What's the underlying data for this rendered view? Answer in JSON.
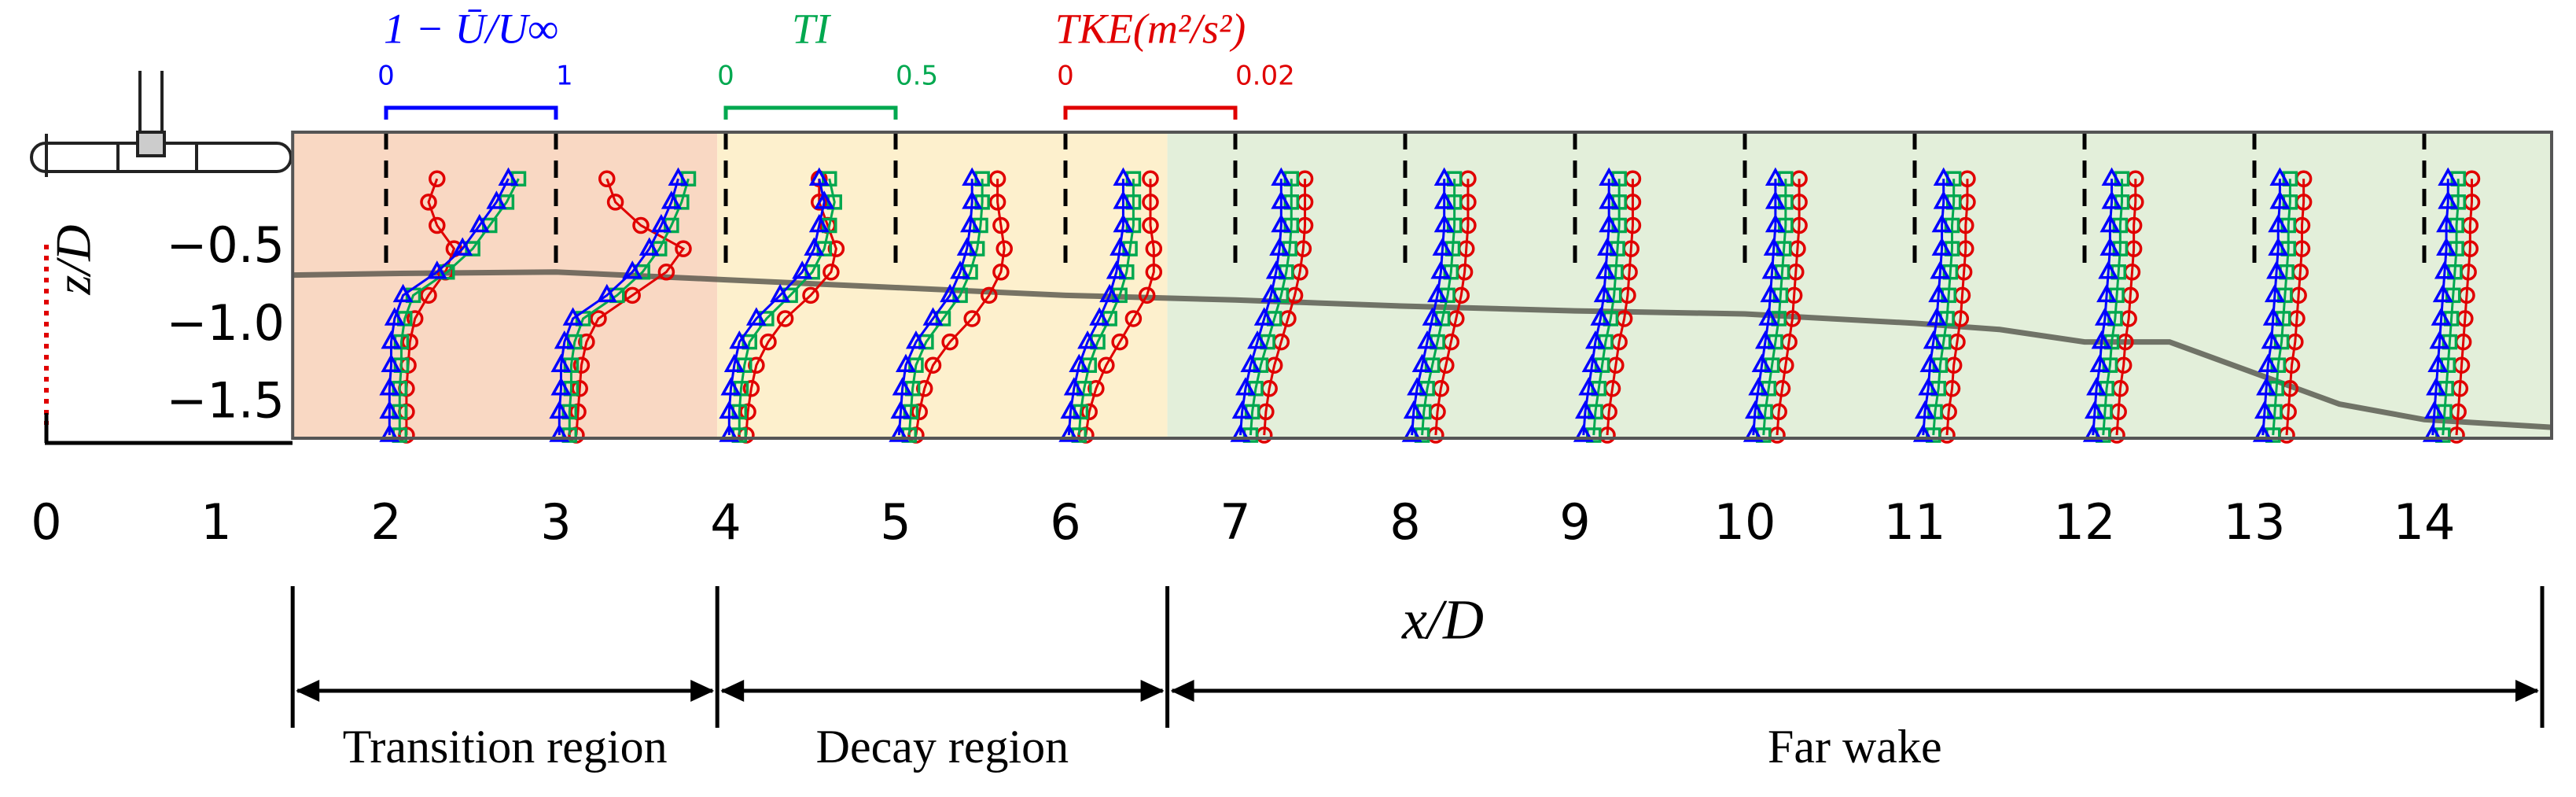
{
  "chart_data": {
    "type": "profile",
    "xlabel": "x/D",
    "ylabel": "z/D",
    "xlim": [
      0,
      14.75
    ],
    "xticks": [
      0,
      1,
      2,
      3,
      4,
      5,
      6,
      7,
      8,
      9,
      10,
      11,
      12,
      13,
      14
    ],
    "ylim": [
      -1.72,
      0.25
    ],
    "yticks": [
      {
        "value": -0.5,
        "label": "−0.5"
      },
      {
        "value": -1.0,
        "label": "−1.0"
      },
      {
        "value": -1.5,
        "label": "−1.5"
      }
    ],
    "z": [
      -1.7,
      -1.55,
      -1.4,
      -1.25,
      -1.1,
      -0.95,
      -0.8,
      -0.65,
      -0.5,
      -0.35,
      -0.2,
      -0.05
    ],
    "stations": [
      2,
      3,
      4,
      5,
      6,
      7,
      8,
      9,
      10,
      11,
      12,
      13,
      14
    ],
    "regions": [
      {
        "label": "Transition region",
        "range": [
          1.45,
          3.95
        ],
        "color": "#f9d8c3"
      },
      {
        "label": "Decay region",
        "range": [
          3.95,
          6.6
        ],
        "color": "#fdf0cd"
      },
      {
        "label": "Far wake",
        "range": [
          6.6,
          14.75
        ],
        "color": "#e3efda"
      }
    ],
    "wake_boundary": {
      "color": "#4a4a40",
      "x": [
        1.45,
        2,
        3,
        4,
        5,
        6,
        7,
        8,
        9,
        10,
        11,
        11.5,
        12,
        12.5,
        13,
        13.5,
        14,
        14.75
      ],
      "z": [
        -0.67,
        -0.66,
        -0.65,
        -0.7,
        -0.75,
        -0.8,
        -0.83,
        -0.87,
        -0.9,
        -0.92,
        -0.98,
        -1.02,
        -1.1,
        -1.1,
        -1.3,
        -1.5,
        -1.6,
        -1.65
      ]
    },
    "series": [
      {
        "name": "1 − Ū/U∞",
        "color": "#0000ff",
        "marker": "triangle",
        "scale": [
          0,
          1
        ],
        "scale_ticks": [
          0,
          1
        ],
        "values": [
          [
            0.02,
            0.02,
            0.02,
            0.03,
            0.03,
            0.05,
            0.1,
            0.3,
            0.45,
            0.55,
            0.65,
            0.72
          ],
          [
            0.02,
            0.02,
            0.03,
            0.03,
            0.05,
            0.1,
            0.3,
            0.45,
            0.55,
            0.62,
            0.68,
            0.72
          ],
          [
            0.02,
            0.02,
            0.03,
            0.05,
            0.08,
            0.18,
            0.32,
            0.45,
            0.52,
            0.55,
            0.58,
            0.55
          ],
          [
            0.02,
            0.03,
            0.04,
            0.06,
            0.12,
            0.22,
            0.32,
            0.38,
            0.42,
            0.44,
            0.45,
            0.45
          ],
          [
            0.02,
            0.03,
            0.05,
            0.08,
            0.13,
            0.2,
            0.26,
            0.3,
            0.32,
            0.34,
            0.34,
            0.34
          ],
          [
            0.03,
            0.04,
            0.06,
            0.09,
            0.13,
            0.17,
            0.21,
            0.24,
            0.26,
            0.27,
            0.27,
            0.27
          ],
          [
            0.04,
            0.05,
            0.07,
            0.1,
            0.13,
            0.16,
            0.19,
            0.21,
            0.22,
            0.23,
            0.23,
            0.23
          ],
          [
            0.05,
            0.06,
            0.08,
            0.1,
            0.12,
            0.15,
            0.17,
            0.18,
            0.19,
            0.2,
            0.2,
            0.2
          ],
          [
            0.05,
            0.06,
            0.08,
            0.1,
            0.12,
            0.14,
            0.15,
            0.16,
            0.17,
            0.18,
            0.18,
            0.18
          ],
          [
            0.05,
            0.06,
            0.08,
            0.09,
            0.11,
            0.13,
            0.14,
            0.15,
            0.16,
            0.16,
            0.17,
            0.17
          ],
          [
            0.05,
            0.06,
            0.07,
            0.09,
            0.1,
            0.12,
            0.13,
            0.14,
            0.15,
            0.15,
            0.16,
            0.16
          ],
          [
            0.05,
            0.06,
            0.07,
            0.08,
            0.1,
            0.11,
            0.12,
            0.13,
            0.14,
            0.14,
            0.15,
            0.15
          ],
          [
            0.05,
            0.06,
            0.07,
            0.08,
            0.09,
            0.1,
            0.11,
            0.12,
            0.13,
            0.13,
            0.14,
            0.14
          ]
        ]
      },
      {
        "name": "TI",
        "color": "#00a84f",
        "marker": "square",
        "scale": [
          0,
          0.5
        ],
        "scale_ticks": [
          0,
          0.5
        ],
        "values": [
          [
            0.04,
            0.04,
            0.04,
            0.045,
            0.045,
            0.055,
            0.08,
            0.18,
            0.255,
            0.305,
            0.355,
            0.39
          ],
          [
            0.04,
            0.04,
            0.045,
            0.045,
            0.055,
            0.08,
            0.18,
            0.255,
            0.305,
            0.34,
            0.37,
            0.39
          ],
          [
            0.04,
            0.04,
            0.045,
            0.055,
            0.07,
            0.12,
            0.19,
            0.255,
            0.29,
            0.305,
            0.32,
            0.305
          ],
          [
            0.04,
            0.045,
            0.05,
            0.06,
            0.09,
            0.14,
            0.19,
            0.22,
            0.24,
            0.25,
            0.255,
            0.255
          ],
          [
            0.04,
            0.045,
            0.055,
            0.07,
            0.095,
            0.13,
            0.16,
            0.18,
            0.19,
            0.2,
            0.2,
            0.2
          ],
          [
            0.045,
            0.05,
            0.06,
            0.075,
            0.095,
            0.115,
            0.135,
            0.15,
            0.16,
            0.165,
            0.165,
            0.165
          ],
          [
            0.05,
            0.055,
            0.065,
            0.08,
            0.095,
            0.11,
            0.125,
            0.135,
            0.14,
            0.145,
            0.145,
            0.145
          ],
          [
            0.055,
            0.06,
            0.07,
            0.08,
            0.09,
            0.105,
            0.115,
            0.12,
            0.125,
            0.13,
            0.13,
            0.13
          ],
          [
            0.055,
            0.06,
            0.07,
            0.08,
            0.09,
            0.1,
            0.105,
            0.11,
            0.115,
            0.12,
            0.12,
            0.12
          ],
          [
            0.055,
            0.06,
            0.07,
            0.075,
            0.085,
            0.095,
            0.1,
            0.105,
            0.11,
            0.11,
            0.115,
            0.115
          ],
          [
            0.055,
            0.06,
            0.065,
            0.075,
            0.08,
            0.09,
            0.095,
            0.1,
            0.105,
            0.105,
            0.11,
            0.11
          ],
          [
            0.055,
            0.06,
            0.065,
            0.07,
            0.08,
            0.085,
            0.09,
            0.095,
            0.1,
            0.1,
            0.105,
            0.105
          ],
          [
            0.055,
            0.06,
            0.065,
            0.07,
            0.075,
            0.08,
            0.085,
            0.09,
            0.095,
            0.095,
            0.1,
            0.1
          ]
        ]
      },
      {
        "name": "TKE(m²/s²)",
        "color": "#e00000",
        "marker": "circle",
        "scale": [
          0,
          0.02
        ],
        "scale_ticks": [
          0,
          0.02
        ],
        "values": [
          [
            0.0024,
            0.0024,
            0.0024,
            0.0026,
            0.0028,
            0.0034,
            0.005,
            0.007,
            0.008,
            0.006,
            0.005,
            0.006
          ],
          [
            0.0024,
            0.0026,
            0.0028,
            0.003,
            0.0036,
            0.005,
            0.009,
            0.013,
            0.015,
            0.01,
            0.007,
            0.006
          ],
          [
            0.0024,
            0.0026,
            0.003,
            0.0036,
            0.005,
            0.007,
            0.01,
            0.0124,
            0.013,
            0.012,
            0.011,
            0.011
          ],
          [
            0.0024,
            0.0028,
            0.0034,
            0.0044,
            0.0064,
            0.009,
            0.011,
            0.0124,
            0.0128,
            0.0124,
            0.012,
            0.012
          ],
          [
            0.0024,
            0.0028,
            0.0036,
            0.0048,
            0.0064,
            0.008,
            0.0096,
            0.0104,
            0.0104,
            0.01,
            0.01,
            0.01
          ],
          [
            0.0034,
            0.0036,
            0.004,
            0.0046,
            0.0054,
            0.0062,
            0.007,
            0.0076,
            0.008,
            0.0082,
            0.0082,
            0.0082
          ],
          [
            0.0036,
            0.0038,
            0.0042,
            0.0048,
            0.0054,
            0.006,
            0.0066,
            0.007,
            0.0072,
            0.0074,
            0.0074,
            0.0074
          ],
          [
            0.0038,
            0.004,
            0.0044,
            0.0048,
            0.0052,
            0.0058,
            0.0062,
            0.0064,
            0.0066,
            0.0068,
            0.0068,
            0.0068
          ],
          [
            0.0038,
            0.004,
            0.0044,
            0.0048,
            0.0052,
            0.0056,
            0.0058,
            0.006,
            0.0062,
            0.0064,
            0.0064,
            0.0064
          ],
          [
            0.0038,
            0.004,
            0.0044,
            0.0046,
            0.005,
            0.0054,
            0.0056,
            0.0058,
            0.006,
            0.006,
            0.0062,
            0.0062
          ],
          [
            0.0038,
            0.004,
            0.0042,
            0.0046,
            0.0048,
            0.0052,
            0.0054,
            0.0056,
            0.0058,
            0.0058,
            0.006,
            0.006
          ],
          [
            0.0038,
            0.004,
            0.0042,
            0.0044,
            0.0048,
            0.005,
            0.0052,
            0.0054,
            0.0056,
            0.0056,
            0.0058,
            0.0058
          ],
          [
            0.0038,
            0.004,
            0.0042,
            0.0044,
            0.0046,
            0.0048,
            0.005,
            0.0052,
            0.0054,
            0.0054,
            0.0056,
            0.0056
          ]
        ]
      }
    ]
  }
}
